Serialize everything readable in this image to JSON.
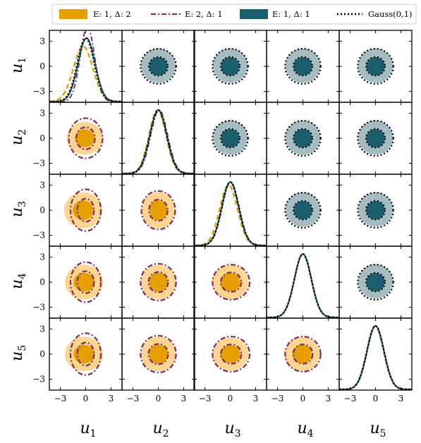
{
  "chart_data": {
    "type": "corner",
    "variables": [
      {
        "name": "u",
        "sub": "1"
      },
      {
        "name": "u",
        "sub": "2"
      },
      {
        "name": "u",
        "sub": "3"
      },
      {
        "name": "u",
        "sub": "4"
      },
      {
        "name": "u",
        "sub": "5"
      }
    ],
    "ticks": [
      -3,
      0,
      3
    ],
    "tick_labels": [
      "−3",
      "0",
      "3"
    ],
    "axis_range": [
      -4.3,
      4.3
    ],
    "legend": {
      "placement": "top",
      "entries": [
        {
          "label": "E: 1, Δ: 2",
          "style": "filled-patch",
          "color": "#E69F00"
        },
        {
          "label": "E: 2, Δ: 1",
          "style": "dash-dot-line",
          "color": "#882E5E"
        },
        {
          "label": "E: 1, Δ: 1",
          "style": "filled-patch",
          "color": "#1B5E6E"
        },
        {
          "label": "Gauss(0,1)",
          "style": "dotted-line",
          "color": "#000000"
        }
      ]
    },
    "colors": {
      "orange_inner": "#E69F00",
      "orange_outer": "#FAD690",
      "teal_inner": "#1B5E6E",
      "teal_outer": "#A4BCC2",
      "purple": "#882E5E",
      "gauss": "#000000"
    },
    "upper_triangle": "E: 1, Δ: 1 vs Gauss(0,1) contours",
    "lower_triangle": "E: 1, Δ: 2 vs E: 2, Δ: 1 contours",
    "diagonal": "marginal densities",
    "contour_levels_sigma": [
      1,
      2
    ],
    "marginals": [
      {
        "variable": "u1",
        "series": [
          {
            "name": "E: 1, Δ: 2",
            "mean": -0.3,
            "sd": 1.15
          },
          {
            "name": "E: 2, Δ: 1",
            "mean": 0.2,
            "sd": 0.85
          },
          {
            "name": "E: 1, Δ: 1",
            "mean": 0.1,
            "sd": 1.0
          },
          {
            "name": "Gauss(0,1)",
            "mean": 0,
            "sd": 1.0
          }
        ]
      },
      {
        "variable": "u2",
        "series": [
          {
            "name": "E: 1, Δ: 2",
            "mean": -0.1,
            "sd": 1.0
          },
          {
            "name": "E: 2, Δ: 1",
            "mean": 0.1,
            "sd": 1.0
          },
          {
            "name": "E: 1, Δ: 1",
            "mean": 0,
            "sd": 1.0
          },
          {
            "name": "Gauss(0,1)",
            "mean": 0,
            "sd": 1.0
          }
        ]
      },
      {
        "variable": "u3",
        "series": [
          {
            "name": "E: 1, Δ: 2",
            "mean": -0.2,
            "sd": 1.05
          },
          {
            "name": "E: 2, Δ: 1",
            "mean": 0.05,
            "sd": 1.0
          },
          {
            "name": "E: 1, Δ: 1",
            "mean": 0,
            "sd": 1.0
          },
          {
            "name": "Gauss(0,1)",
            "mean": 0,
            "sd": 1.0
          }
        ]
      },
      {
        "variable": "u4",
        "series": [
          {
            "name": "E: 1, Δ: 2",
            "mean": 0,
            "sd": 1.0
          },
          {
            "name": "E: 2, Δ: 1",
            "mean": 0,
            "sd": 1.0
          },
          {
            "name": "E: 1, Δ: 1",
            "mean": 0,
            "sd": 1.0
          },
          {
            "name": "Gauss(0,1)",
            "mean": 0,
            "sd": 1.0
          }
        ]
      },
      {
        "variable": "u5",
        "series": [
          {
            "name": "E: 1, Δ: 2",
            "mean": -0.05,
            "sd": 1.0
          },
          {
            "name": "E: 2, Δ: 1",
            "mean": 0,
            "sd": 1.0
          },
          {
            "name": "E: 1, Δ: 1",
            "mean": 0,
            "sd": 1.0
          },
          {
            "name": "Gauss(0,1)",
            "mean": 0,
            "sd": 1.0
          }
        ]
      }
    ],
    "lower_contours": [
      {
        "pair": [
          "u1",
          "u2"
        ],
        "orange": {
          "cx": -0.1,
          "cy": 0,
          "rx": 1.05,
          "ry": 0.95
        },
        "purple": {
          "cx": 0,
          "cy": 0,
          "rx": 1.0,
          "ry": 1.2
        }
      },
      {
        "pair": [
          "u1",
          "u3"
        ],
        "orange": {
          "cx": -0.3,
          "cy": 0,
          "rx": 1.1,
          "ry": 1.05
        },
        "purple": {
          "cx": 0,
          "cy": 0,
          "rx": 0.9,
          "ry": 1.25
        }
      },
      {
        "pair": [
          "u2",
          "u3"
        ],
        "orange": {
          "cx": 0,
          "cy": 0,
          "rx": 0.95,
          "ry": 1.05
        },
        "purple": {
          "cx": 0,
          "cy": 0,
          "rx": 1.0,
          "ry": 1.15
        }
      },
      {
        "pair": [
          "u1",
          "u4"
        ],
        "orange": {
          "cx": -0.2,
          "cy": 0,
          "rx": 1.1,
          "ry": 1.0
        },
        "purple": {
          "cx": 0,
          "cy": 0,
          "rx": 0.9,
          "ry": 1.2
        }
      },
      {
        "pair": [
          "u2",
          "u4"
        ],
        "orange": {
          "cx": 0,
          "cy": 0,
          "rx": 1.0,
          "ry": 1.0
        },
        "purple": {
          "cx": 0,
          "cy": 0,
          "rx": 1.05,
          "ry": 1.1
        }
      },
      {
        "pair": [
          "u3",
          "u4"
        ],
        "orange": {
          "cx": 0,
          "cy": 0,
          "rx": 1.05,
          "ry": 1.0
        },
        "purple": {
          "cx": 0.1,
          "cy": 0,
          "rx": 1.1,
          "ry": 1.05
        }
      },
      {
        "pair": [
          "u1",
          "u5"
        ],
        "orange": {
          "cx": -0.2,
          "cy": 0,
          "rx": 1.1,
          "ry": 1.0
        },
        "purple": {
          "cx": 0,
          "cy": 0,
          "rx": 0.9,
          "ry": 1.25
        }
      },
      {
        "pair": [
          "u2",
          "u5"
        ],
        "orange": {
          "cx": 0,
          "cy": 0,
          "rx": 1.0,
          "ry": 1.0
        },
        "purple": {
          "cx": 0,
          "cy": 0,
          "rx": 1.05,
          "ry": 1.1
        }
      },
      {
        "pair": [
          "u3",
          "u5"
        ],
        "orange": {
          "cx": 0,
          "cy": 0,
          "rx": 1.05,
          "ry": 0.95
        },
        "purple": {
          "cx": 0.1,
          "cy": 0,
          "rx": 1.1,
          "ry": 1.05
        }
      },
      {
        "pair": [
          "u4",
          "u5"
        ],
        "orange": {
          "cx": -0.1,
          "cy": 0,
          "rx": 1.0,
          "ry": 1.0
        },
        "purple": {
          "cx": 0,
          "cy": 0,
          "rx": 1.05,
          "ry": 1.05
        }
      }
    ]
  }
}
